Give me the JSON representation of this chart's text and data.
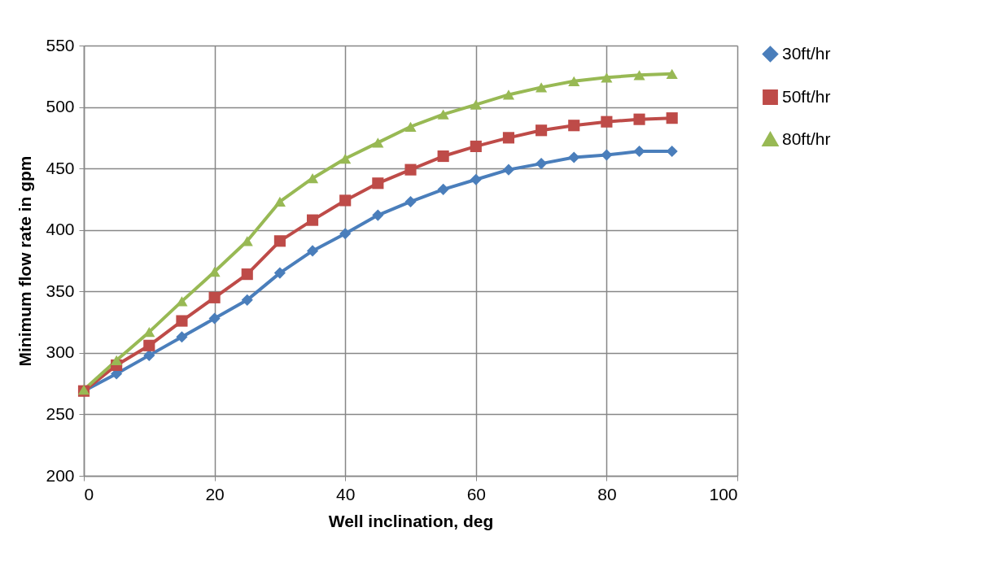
{
  "chart_data": {
    "type": "line",
    "xlabel": "Well inclination, deg",
    "ylabel": "Minimum flow rate in gpm",
    "x": [
      0,
      5,
      10,
      15,
      20,
      25,
      30,
      35,
      40,
      45,
      50,
      55,
      60,
      65,
      70,
      75,
      80,
      85,
      90
    ],
    "series": [
      {
        "name": "30ft/hr",
        "color": "#4a7ebb",
        "marker": "diamond",
        "values": [
          269,
          283,
          298,
          313,
          328,
          343,
          365,
          383,
          397,
          412,
          423,
          433,
          441,
          449,
          454,
          459,
          461,
          464,
          464
        ]
      },
      {
        "name": "50ft/hr",
        "color": "#be4b48",
        "marker": "square",
        "values": [
          269,
          290,
          306,
          326,
          345,
          364,
          391,
          408,
          424,
          438,
          449,
          460,
          468,
          475,
          481,
          485,
          488,
          490,
          491
        ]
      },
      {
        "name": "80ft/hr",
        "color": "#98b954",
        "marker": "triangle",
        "values": [
          270,
          294,
          317,
          342,
          366,
          391,
          423,
          442,
          458,
          471,
          484,
          494,
          502,
          510,
          516,
          521,
          524,
          526,
          527
        ]
      }
    ],
    "xlim": [
      0,
      100
    ],
    "xticks": [
      0,
      20,
      40,
      60,
      80,
      100
    ],
    "ylim": [
      200,
      550
    ],
    "yticks": [
      200,
      250,
      300,
      350,
      400,
      450,
      500,
      550
    ],
    "grid": true,
    "legend": "right",
    "line_style": "solid"
  }
}
